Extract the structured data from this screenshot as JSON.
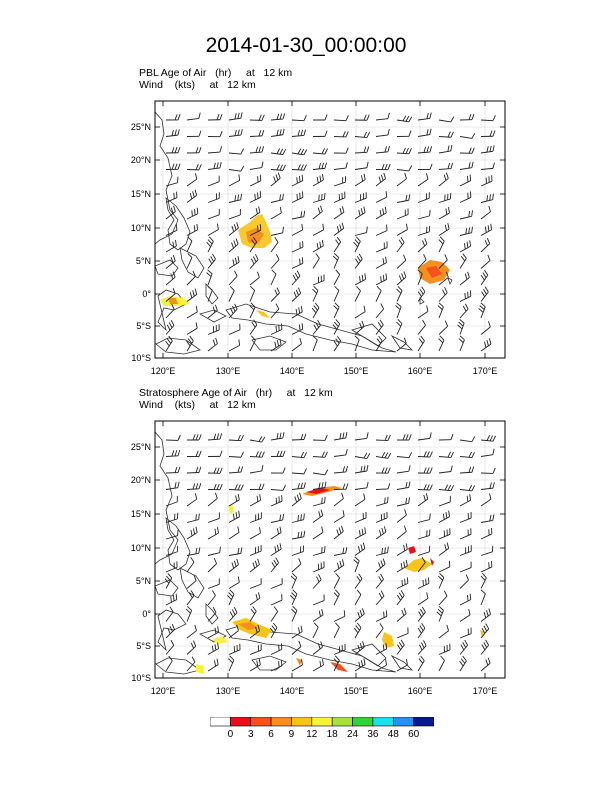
{
  "title": "2014-01-30_00:00:00",
  "panels": [
    {
      "subtitle1": "PBL Age of Air   (hr)     at   12 km",
      "subtitle2": "Wind    (kts)     at   12 km"
    },
    {
      "subtitle1": "Stratosphere Age of Air   (hr)     at   12 km",
      "subtitle2": "Wind    (kts)     at   12 km"
    }
  ],
  "lat_labels": [
    "25°N",
    "20°N",
    "15°N",
    "10°N",
    "5°N",
    "0°",
    "5°S",
    "10°S"
  ],
  "lon_labels": [
    "120°E",
    "130°E",
    "140°E",
    "150°E",
    "160°E",
    "170°E"
  ],
  "colorbar": {
    "labels": [
      "0",
      "3",
      "6",
      "9",
      "12",
      "18",
      "24",
      "36",
      "48",
      "60"
    ],
    "colors": [
      "#ffffff",
      "#e8101a",
      "#f4511e",
      "#f58f1f",
      "#f8c31b",
      "#f7f23c",
      "#a8e040",
      "#38d038",
      "#1fe0e8",
      "#2a8ff0",
      "#0a1a8a"
    ]
  }
}
